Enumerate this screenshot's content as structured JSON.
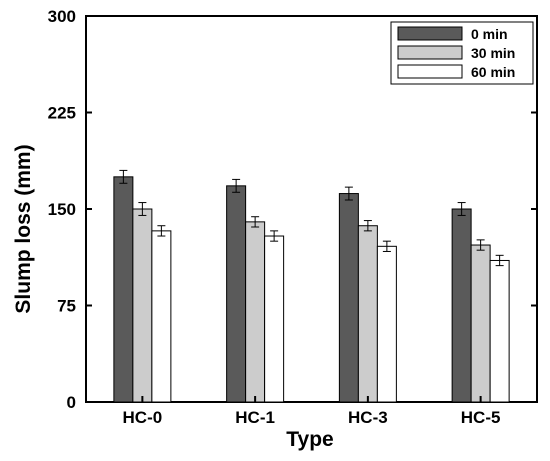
{
  "chart_data": {
    "type": "bar",
    "title": "",
    "xlabel": "Type",
    "ylabel": "Slump loss (mm)",
    "categories": [
      "HC-0",
      "HC-1",
      "HC-3",
      "HC-5"
    ],
    "ylim": [
      0,
      300
    ],
    "yticks": [
      "0",
      "75",
      "150",
      "225",
      "300"
    ],
    "legend_position": "top-right",
    "series": [
      {
        "name": "0 min",
        "color": "#5a5a5a",
        "values": [
          175,
          168,
          162,
          150
        ],
        "errors": [
          5,
          5,
          5,
          5
        ]
      },
      {
        "name": "30 min",
        "color": "#cccccc",
        "values": [
          150,
          140,
          137,
          122
        ],
        "errors": [
          5,
          4,
          4,
          4
        ]
      },
      {
        "name": "60 min",
        "color": "#ffffff",
        "values": [
          133,
          129,
          121,
          110
        ],
        "errors": [
          4,
          4,
          4,
          4
        ]
      }
    ]
  }
}
